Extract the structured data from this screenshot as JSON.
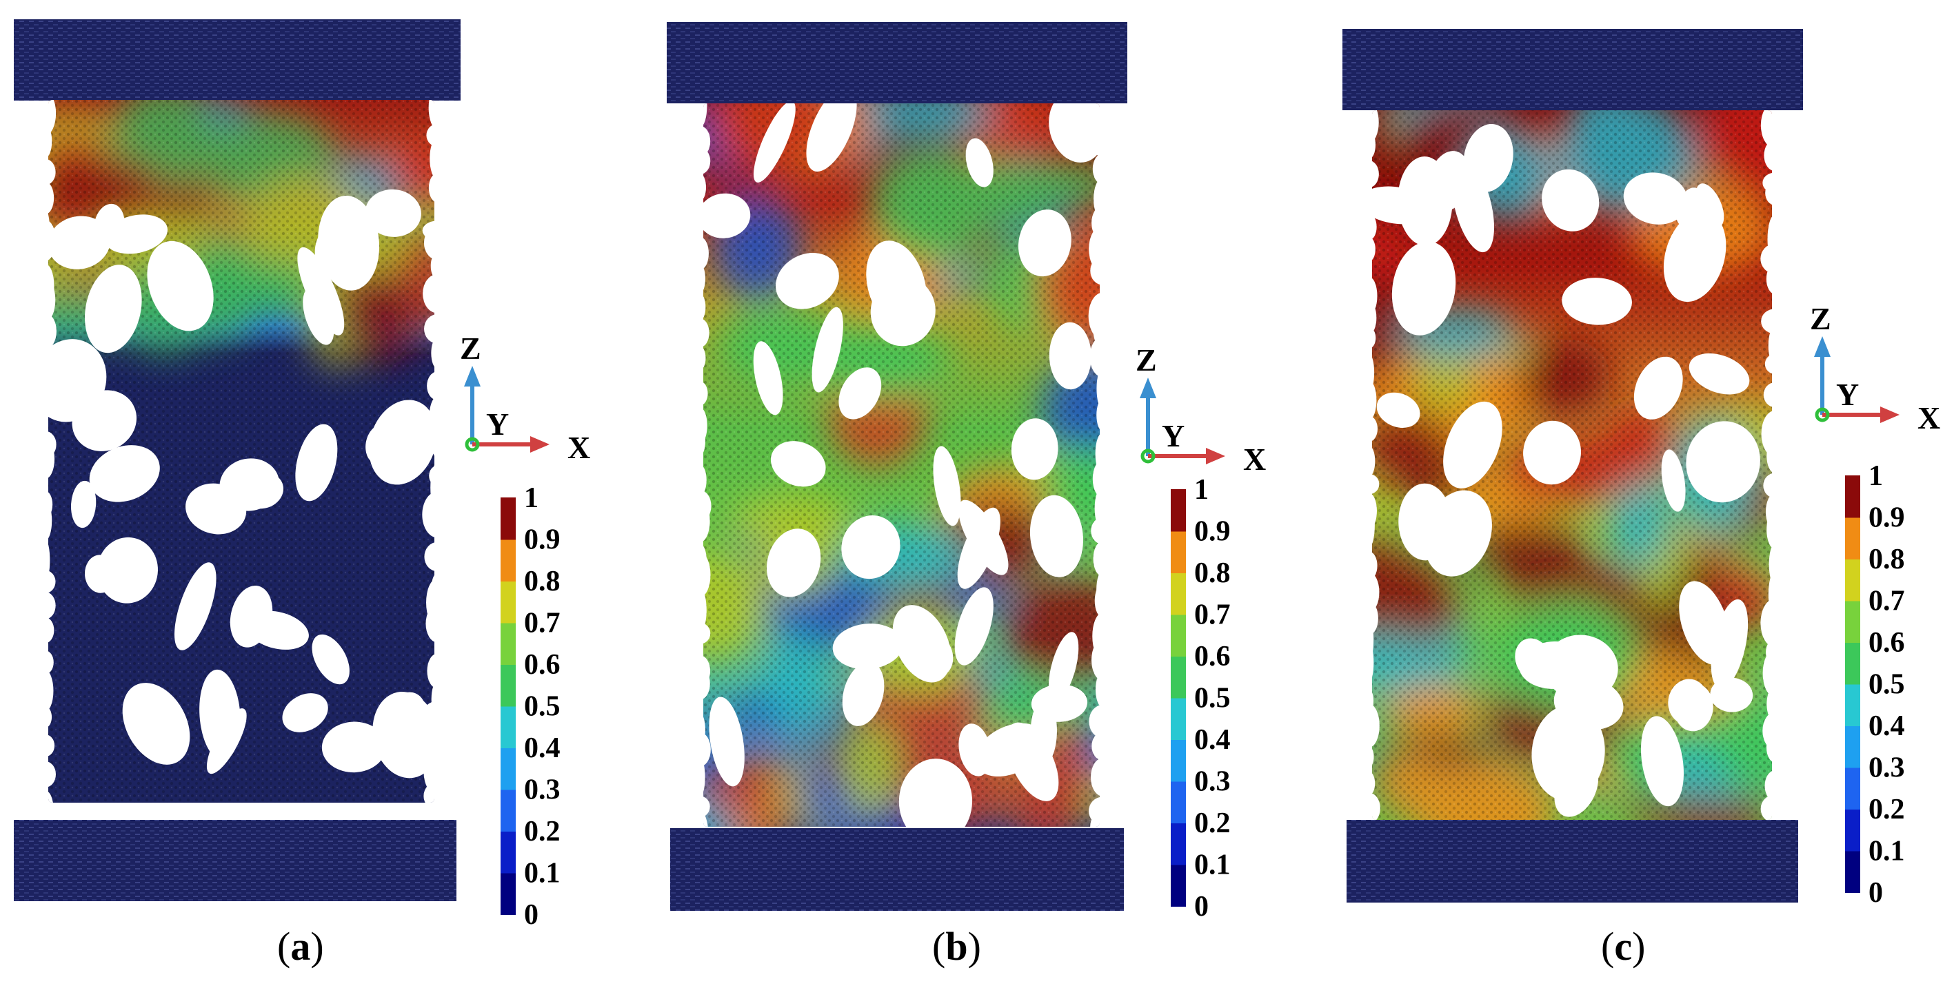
{
  "figure": {
    "panels": [
      {
        "label_open": "(",
        "label_letter": "a",
        "label_close": ")",
        "stage": 0
      },
      {
        "label_open": "(",
        "label_letter": "b",
        "label_close": ")",
        "stage": 1
      },
      {
        "label_open": "(",
        "label_letter": "c",
        "label_close": ")",
        "stage": 2
      }
    ],
    "axes_triad": {
      "z_label": "Z",
      "y_label": "Y",
      "x_label": "X"
    },
    "colorbar": {
      "ticks": [
        "1",
        "0.9",
        "0.8",
        "0.7",
        "0.6",
        "0.5",
        "0.4",
        "0.3",
        "0.2",
        "0.1",
        "0"
      ],
      "colors": [
        "#000080",
        "#0a1ec8",
        "#1e64f0",
        "#1ea0f0",
        "#28c8d2",
        "#3cc85a",
        "#78d23c",
        "#d2d21e",
        "#f08c14",
        "#f0321e",
        "#8b0a0a"
      ]
    },
    "colors": {
      "plate": "#1c2260",
      "matrix_low": "#1c2360",
      "pore": "#ffffff"
    }
  }
}
